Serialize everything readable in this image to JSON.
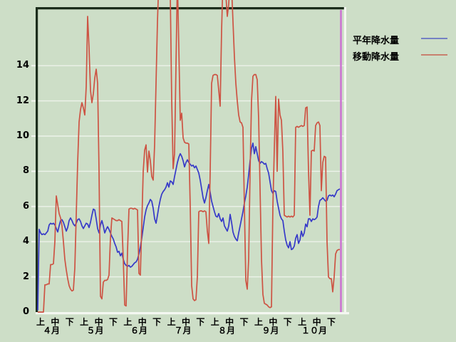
{
  "figure": {
    "background_color": "#cddec7",
    "border_dark_color": "#1c2e1c",
    "border_light_color": "#f4f7f1",
    "gridline_color": "#edf3ea",
    "text_color": "#000000"
  },
  "legend": {
    "items": [
      {
        "label": "平年降水量",
        "line_color": "#7581c3"
      },
      {
        "label": "移動降水量",
        "line_color": "#c8806e"
      }
    ]
  },
  "chart_data": {
    "type": "line",
    "title": "",
    "xlabel": "",
    "ylabel": "",
    "x_axis": {
      "months": [
        "４月",
        "５月",
        "６月",
        "７月",
        "８月",
        "９月",
        "１０月"
      ],
      "period_labels": [
        "上",
        "中",
        "下"
      ],
      "note": "daily samples from April through October, ticks every ten-day period"
    },
    "y_axis": {
      "ticks": [
        0,
        2,
        4,
        6,
        8,
        10,
        12,
        14
      ],
      "visible_range": [
        0,
        17.3
      ],
      "grid": true
    },
    "marker_line": {
      "name": "end-of-data-marker",
      "color": "#cc74d2",
      "at_day_index": 212
    },
    "legend_position": "top-right outside plot",
    "series": [
      {
        "name": "平年降水量",
        "color": "#3639c8",
        "values": [
          0.1,
          4.7,
          4.5,
          4.4,
          4.45,
          4.4,
          4.5,
          4.6,
          4.95,
          5.05,
          5.0,
          5.05,
          4.95,
          4.75,
          4.55,
          4.9,
          5.2,
          5.25,
          5.1,
          4.85,
          4.6,
          4.8,
          5.2,
          5.35,
          5.2,
          5.0,
          4.9,
          5.05,
          5.25,
          5.3,
          5.15,
          4.9,
          4.75,
          4.9,
          5.05,
          5.0,
          4.8,
          5.1,
          5.5,
          5.85,
          5.8,
          5.3,
          4.75,
          4.5,
          4.95,
          5.2,
          4.9,
          4.5,
          4.7,
          4.85,
          4.7,
          4.5,
          4.3,
          4.15,
          3.9,
          3.7,
          3.4,
          3.45,
          3.2,
          3.35,
          3.0,
          2.75,
          2.65,
          2.6,
          2.65,
          2.55,
          2.6,
          2.7,
          2.8,
          2.85,
          3.0,
          3.3,
          3.7,
          4.2,
          4.8,
          5.4,
          5.8,
          6.05,
          6.2,
          6.4,
          6.3,
          5.9,
          5.3,
          5.05,
          5.5,
          6.0,
          6.4,
          6.7,
          6.85,
          6.95,
          7.1,
          7.35,
          7.1,
          7.45,
          7.4,
          7.25,
          7.7,
          8.1,
          8.5,
          8.8,
          9.0,
          8.85,
          8.6,
          8.25,
          8.5,
          8.65,
          8.5,
          8.4,
          8.3,
          8.35,
          8.2,
          8.3,
          8.1,
          7.9,
          7.5,
          7.0,
          6.5,
          6.2,
          6.5,
          6.9,
          7.25,
          6.8,
          6.3,
          6.0,
          5.7,
          5.45,
          5.4,
          5.6,
          5.3,
          5.15,
          5.35,
          4.9,
          4.75,
          4.6,
          4.9,
          5.55,
          5.1,
          4.55,
          4.3,
          4.15,
          4.05,
          4.5,
          4.9,
          5.3,
          5.7,
          6.2,
          6.6,
          7.1,
          7.8,
          8.6,
          9.3,
          9.6,
          9.0,
          9.4,
          9.0,
          8.6,
          8.45,
          8.55,
          8.5,
          8.4,
          8.45,
          8.15,
          7.9,
          7.4,
          6.9,
          6.75,
          6.9,
          6.85,
          6.3,
          5.9,
          5.5,
          5.3,
          5.2,
          4.6,
          4.1,
          3.8,
          3.65,
          4.0,
          3.55,
          3.6,
          3.75,
          4.2,
          4.4,
          3.9,
          4.1,
          4.6,
          4.3,
          4.5,
          5.0,
          4.85,
          5.3,
          5.3,
          5.15,
          5.3,
          5.25,
          5.3,
          5.4,
          6.0,
          6.35,
          6.4,
          6.5,
          6.4,
          6.3,
          6.35,
          6.6,
          6.65,
          6.6,
          6.65,
          6.55,
          6.7,
          6.9,
          6.95,
          7.0
        ]
      },
      {
        "name": "移動降水量",
        "color": "#cd5343",
        "values": [
          0,
          0,
          0,
          0,
          0,
          1.55,
          1.55,
          1.6,
          1.6,
          2.7,
          2.7,
          2.75,
          4.0,
          6.6,
          6.1,
          5.6,
          5.35,
          4.9,
          4.0,
          3.0,
          2.4,
          1.9,
          1.5,
          1.3,
          1.2,
          1.25,
          2.5,
          5.5,
          8.5,
          10.8,
          11.5,
          11.9,
          11.6,
          11.2,
          12.8,
          16.8,
          15.0,
          12.6,
          11.9,
          12.4,
          13.3,
          13.8,
          13.0,
          8.0,
          0.9,
          0.75,
          1.7,
          1.8,
          1.8,
          1.85,
          2.1,
          4.2,
          5.35,
          5.3,
          5.25,
          5.2,
          5.2,
          5.25,
          5.2,
          5.15,
          3.0,
          0.4,
          0.35,
          3.5,
          5.85,
          5.9,
          5.9,
          5.85,
          5.9,
          5.85,
          5.8,
          2.2,
          2.1,
          5.0,
          8.0,
          9.2,
          9.5,
          7.95,
          9.15,
          8.6,
          7.7,
          7.5,
          9.5,
          13.0,
          16.5,
          19.0,
          19.5,
          19.5,
          19.5,
          19.5,
          19.5,
          19.5,
          19.5,
          18.0,
          12.0,
          8.15,
          9.0,
          14.0,
          19.0,
          15.0,
          10.9,
          11.3,
          9.9,
          9.65,
          9.6,
          9.6,
          9.55,
          6.0,
          1.5,
          0.75,
          0.65,
          0.7,
          2.0,
          5.7,
          5.75,
          5.75,
          5.7,
          5.75,
          5.7,
          4.6,
          3.9,
          8.0,
          13.0,
          13.45,
          13.5,
          13.5,
          13.45,
          12.6,
          11.7,
          16.0,
          19.0,
          19.5,
          18.0,
          16.8,
          17.5,
          19.0,
          18.5,
          16.5,
          14.5,
          13.0,
          12.0,
          11.2,
          10.8,
          10.75,
          10.5,
          6.0,
          1.8,
          1.3,
          3.0,
          8.0,
          12.0,
          13.4,
          13.5,
          13.5,
          13.2,
          11.0,
          7.0,
          3.0,
          1.0,
          0.5,
          0.45,
          0.4,
          0.3,
          0.25,
          0.3,
          6.0,
          9.3,
          12.25,
          8.0,
          12.1,
          11.2,
          10.9,
          9.1,
          5.5,
          5.45,
          5.4,
          5.45,
          5.4,
          5.45,
          5.4,
          5.5,
          10.5,
          10.55,
          10.5,
          10.55,
          10.6,
          10.55,
          10.6,
          11.6,
          11.65,
          8.0,
          5.5,
          9.15,
          9.2,
          9.15,
          10.6,
          10.75,
          10.8,
          10.6,
          6.9,
          8.5,
          8.85,
          8.8,
          4.0,
          2.0,
          1.9,
          1.9,
          1.15,
          2.0,
          3.3,
          3.5,
          3.55,
          3.55
        ]
      }
    ]
  }
}
